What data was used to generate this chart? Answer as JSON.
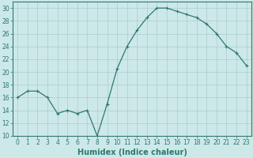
{
  "x": [
    0,
    1,
    2,
    3,
    4,
    5,
    6,
    7,
    8,
    9,
    10,
    11,
    12,
    13,
    14,
    15,
    16,
    17,
    18,
    19,
    20,
    21,
    22,
    23
  ],
  "y": [
    16,
    17,
    17,
    16,
    13.5,
    14,
    13.5,
    14,
    10,
    15,
    20.5,
    24,
    26.5,
    28.5,
    30,
    30,
    29.5,
    29,
    28.5,
    27.5,
    26,
    24,
    23,
    21
  ],
  "line_color": "#2d7a6e",
  "marker": "+",
  "marker_size": 3.5,
  "marker_linewidth": 0.8,
  "bg_color": "#cde8e8",
  "grid_color": "#aacccc",
  "xlabel": "Humidex (Indice chaleur)",
  "ylim": [
    10,
    31
  ],
  "xlim": [
    -0.5,
    23.5
  ],
  "yticks": [
    10,
    12,
    14,
    16,
    18,
    20,
    22,
    24,
    26,
    28,
    30
  ],
  "xticks": [
    0,
    1,
    2,
    3,
    4,
    5,
    6,
    7,
    8,
    9,
    10,
    11,
    12,
    13,
    14,
    15,
    16,
    17,
    18,
    19,
    20,
    21,
    22,
    23
  ],
  "tick_label_fontsize": 5.5,
  "xlabel_fontsize": 7.0,
  "axis_color": "#2d7a6e",
  "label_color": "#2d7a6e",
  "linewidth": 0.9
}
